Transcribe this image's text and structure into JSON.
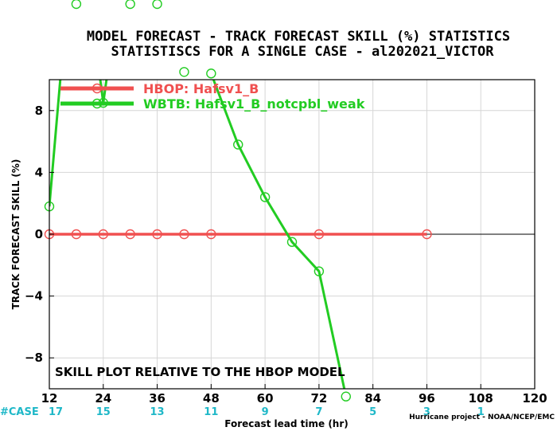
{
  "chart_data": {
    "type": "line",
    "title_lines": [
      "MODEL FORECAST - TRACK FORECAST SKILL (%) STATISTICS",
      "STATISTISCS FOR A SINGLE CASE - al202021_VICTOR"
    ],
    "xlabel": "Forecast lead time (hr)",
    "ylabel": "TRACK FORECAST SKILL (%)",
    "xlim": [
      12,
      120
    ],
    "ylim": [
      -10,
      10
    ],
    "x_ticks": [
      12,
      24,
      36,
      48,
      60,
      72,
      84,
      96,
      108,
      120
    ],
    "y_ticks": [
      -8,
      -4,
      0,
      4,
      8
    ],
    "grid": true,
    "legend_position": "top-left",
    "annotation": "SKILL PLOT RELATIVE TO THE HBOP MODEL",
    "case_label": "#CASE",
    "case_counts": [
      {
        "x": 12,
        "count": "17"
      },
      {
        "x": 24,
        "count": "15"
      },
      {
        "x": 36,
        "count": "13"
      },
      {
        "x": 48,
        "count": "11"
      },
      {
        "x": 60,
        "count": "9"
      },
      {
        "x": 72,
        "count": "7"
      },
      {
        "x": 84,
        "count": "5"
      },
      {
        "x": 96,
        "count": "3"
      },
      {
        "x": 108,
        "count": "1"
      }
    ],
    "credit": "Hurricane project - NOAA/NCEP/EMC",
    "series": [
      {
        "name": "HBOP: Hafsv1_B",
        "color": "#f05050",
        "x": [
          12,
          18,
          24,
          30,
          36,
          42,
          48,
          72,
          96
        ],
        "y": [
          0,
          0,
          0,
          0,
          0,
          0,
          0,
          0,
          0
        ]
      },
      {
        "name": "WBTB: Hafsv1_B_notcpbl_weak",
        "color": "#22cc22",
        "x": [
          12,
          18,
          24,
          30,
          36,
          42,
          48,
          54,
          60,
          66,
          72,
          78
        ],
        "y": [
          1.8,
          22,
          8.5,
          21,
          20.2,
          10.5,
          10.4,
          5.8,
          2.4,
          -0.5,
          -2.4,
          -10.5
        ]
      }
    ]
  }
}
